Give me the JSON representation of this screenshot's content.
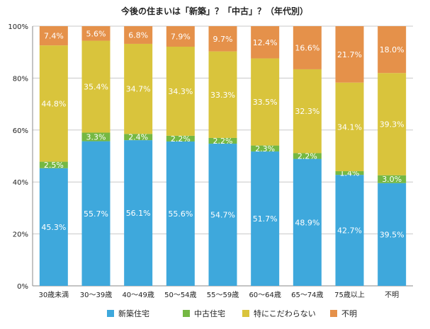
{
  "chart_data": {
    "type": "bar",
    "stacked": true,
    "percent_stacked": true,
    "title": "今後の住まいは「新築」？「中古」？（年代別）",
    "xlabel": "",
    "ylabel": "",
    "ylim": [
      0,
      100
    ],
    "yticks": [
      "0%",
      "20%",
      "40%",
      "60%",
      "80%",
      "100%"
    ],
    "ytick_values": [
      0,
      20,
      40,
      60,
      80,
      100
    ],
    "grid": true,
    "legend_position": "bottom",
    "categories": [
      "30歳未満",
      "30〜39歳",
      "40〜49歳",
      "50〜54歳",
      "55〜59歳",
      "60〜64歳",
      "65〜74歳",
      "75歳以上",
      "不明"
    ],
    "series": [
      {
        "name": "新築住宅",
        "color": "#3ea8dc",
        "values": [
          45.3,
          55.7,
          56.1,
          55.6,
          54.7,
          51.7,
          48.9,
          42.7,
          39.5
        ],
        "labels": [
          "45.3%",
          "55.7%",
          "56.1%",
          "55.6%",
          "54.7%",
          "51.7%",
          "48.9%",
          "42.7%",
          "39.5%"
        ]
      },
      {
        "name": "中古住宅",
        "color": "#75b843",
        "values": [
          2.5,
          3.3,
          2.4,
          2.2,
          2.2,
          2.3,
          2.2,
          1.4,
          3.0
        ],
        "labels": [
          "2.5%",
          "3.3%",
          "2.4%",
          "2.2%",
          "2.2%",
          "2.3%",
          "2.2%",
          "1.4%",
          "3.0%"
        ]
      },
      {
        "name": "特にこだわらない",
        "color": "#d9c43c",
        "values": [
          44.8,
          35.4,
          34.7,
          34.3,
          33.3,
          33.5,
          32.3,
          34.1,
          39.3
        ],
        "labels": [
          "44.8%",
          "35.4%",
          "34.7%",
          "34.3%",
          "33.3%",
          "33.5%",
          "32.3%",
          "34.1%",
          "39.3%"
        ]
      },
      {
        "name": "不明",
        "color": "#e5914a",
        "values": [
          7.4,
          5.6,
          6.8,
          7.9,
          9.7,
          12.4,
          16.6,
          21.7,
          18.0
        ],
        "labels": [
          "7.4%",
          "5.6%",
          "6.8%",
          "7.9%",
          "9.7%",
          "12.4%",
          "16.6%",
          "21.7%",
          "18.0%"
        ]
      }
    ]
  }
}
